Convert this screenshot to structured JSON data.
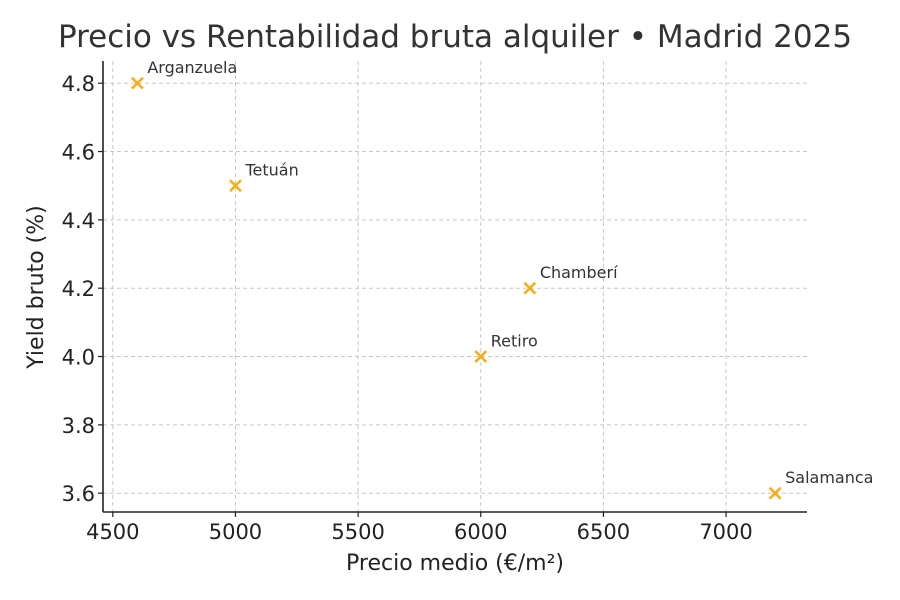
{
  "chart_data": {
    "type": "scatter",
    "title": "Precio vs Rentabilidad bruta alquiler • Madrid 2025",
    "xlabel": "Precio medio (€/m²)",
    "ylabel": "Yield bruto (%)",
    "xlim": [
      4460,
      7330
    ],
    "ylim": [
      3.545,
      4.865
    ],
    "xticks": [
      4500,
      5000,
      5500,
      6000,
      6500,
      7000
    ],
    "yticks": [
      3.6,
      3.8,
      4.0,
      4.2,
      4.4,
      4.6,
      4.8
    ],
    "xtick_labels": [
      "4500",
      "5000",
      "5500",
      "6000",
      "6500",
      "7000"
    ],
    "ytick_labels": [
      "3.6",
      "3.8",
      "4.0",
      "4.2",
      "4.4",
      "4.6",
      "4.8"
    ],
    "grid": true,
    "marker": "x",
    "color": "#f2b01e",
    "points": [
      {
        "label": "Arganzuela",
        "x": 4600,
        "y": 4.8
      },
      {
        "label": "Tetuán",
        "x": 5000,
        "y": 4.5
      },
      {
        "label": "Chamberí",
        "x": 6200,
        "y": 4.2
      },
      {
        "label": "Retiro",
        "x": 6000,
        "y": 4.0
      },
      {
        "label": "Salamanca",
        "x": 7200,
        "y": 3.6
      }
    ]
  }
}
